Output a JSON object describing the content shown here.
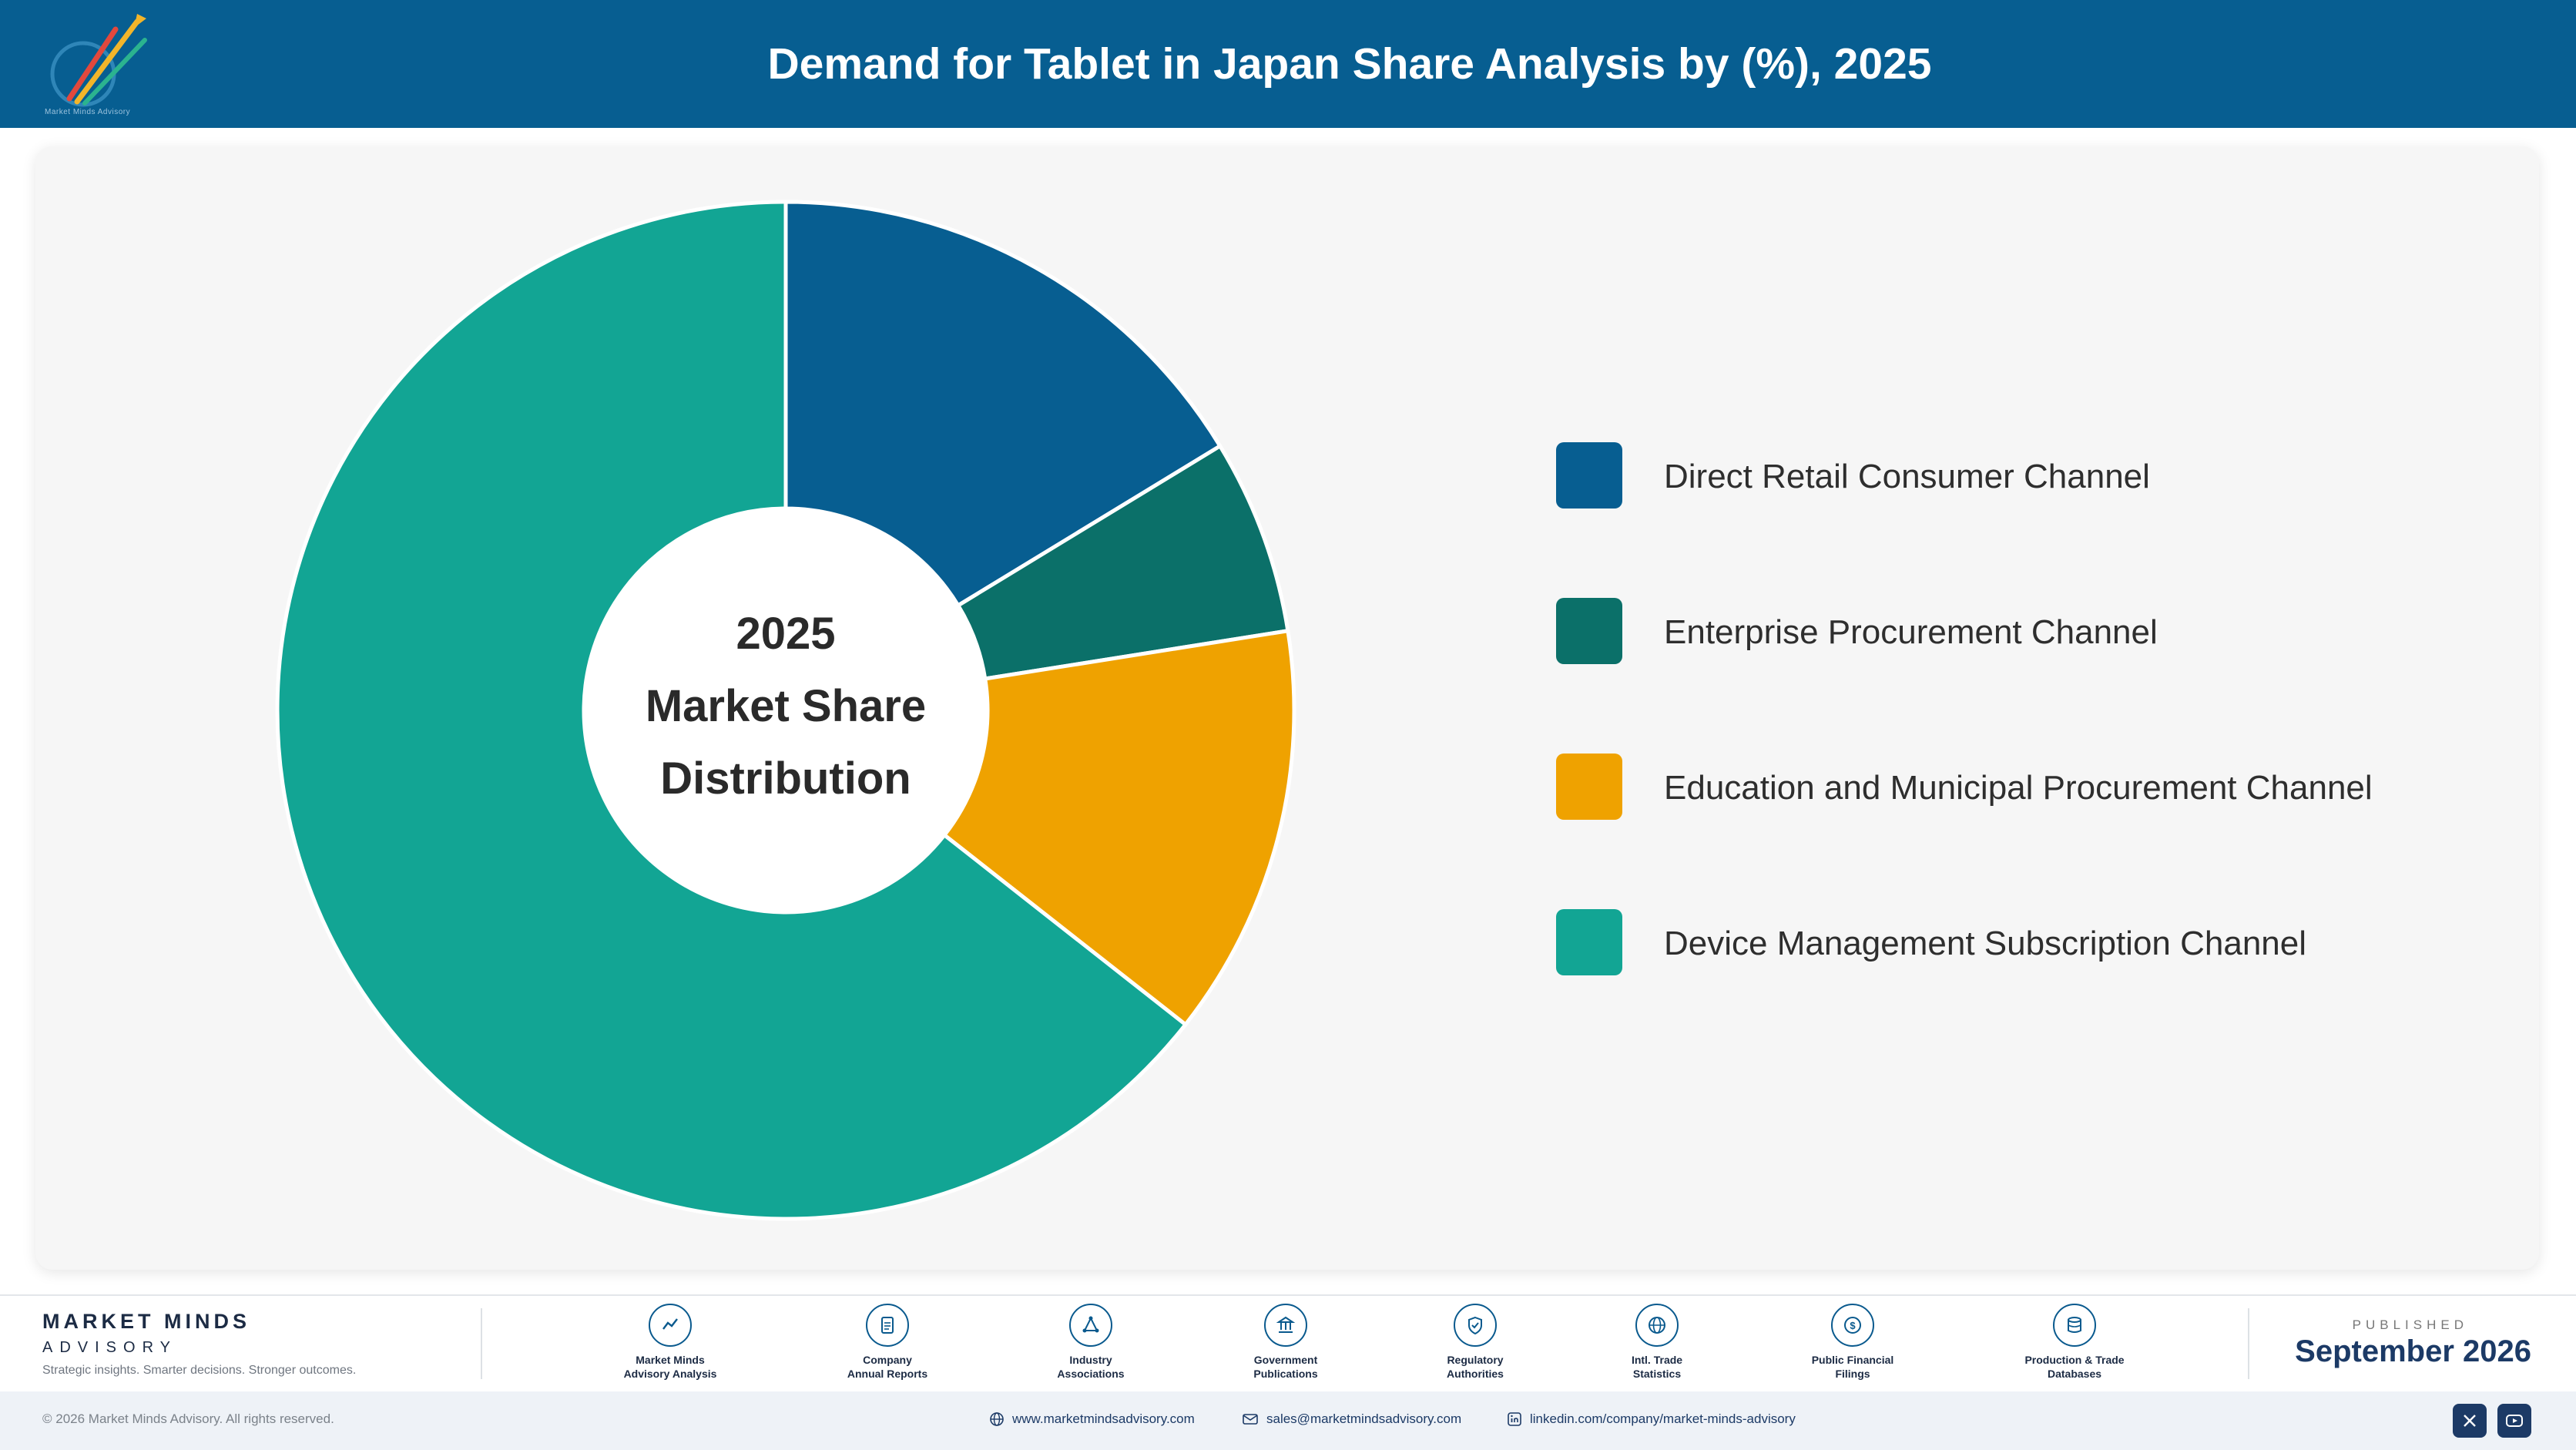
{
  "header": {
    "title": "Demand for Tablet in Japan Share Analysis by (%), 2025"
  },
  "chart_data": {
    "type": "pie",
    "title": "Demand for Tablet in Japan Share Analysis by (%), 2025",
    "center_label": [
      "2025",
      "Market Share",
      "Distribution"
    ],
    "categories": [
      "Direct Retail Consumer Channel",
      "Enterprise Procurement Channel",
      "Education and Municipal Procurement Channel",
      "Device Management Subscription Channel"
    ],
    "values": [
      16.3,
      6.2,
      13.1,
      64.4
    ],
    "colors": [
      "#075e91",
      "#0b7069",
      "#efa200",
      "#12a594"
    ],
    "legend_position": "right"
  },
  "footer": {
    "brand_name": "MARKET MINDS",
    "brand_sub": "ADVISORY",
    "tagline": "Strategic insights. Smarter decisions. Stronger outcomes.",
    "sources": [
      {
        "label": "Market Minds\nAdvisory Analysis",
        "icon": "trend-chart-icon"
      },
      {
        "label": "Company\nAnnual Reports",
        "icon": "document-icon"
      },
      {
        "label": "Industry\nAssociations",
        "icon": "network-icon"
      },
      {
        "label": "Government\nPublications",
        "icon": "building-icon"
      },
      {
        "label": "Regulatory\nAuthorities",
        "icon": "shield-icon"
      },
      {
        "label": "Intl. Trade\nStatistics",
        "icon": "globe-icon"
      },
      {
        "label": "Public Financial\nFilings",
        "icon": "coin-icon"
      },
      {
        "label": "Production & Trade\nDatabases",
        "icon": "database-icon"
      }
    ],
    "published_label": "PUBLISHED",
    "published_date": "September 2026",
    "copyright": "© 2026 Market Minds Advisory. All rights reserved.",
    "website": "www.marketmindsadvisory.com",
    "email": "sales@marketmindsadvisory.com",
    "linkedin": "linkedin.com/company/market-minds-advisory"
  }
}
